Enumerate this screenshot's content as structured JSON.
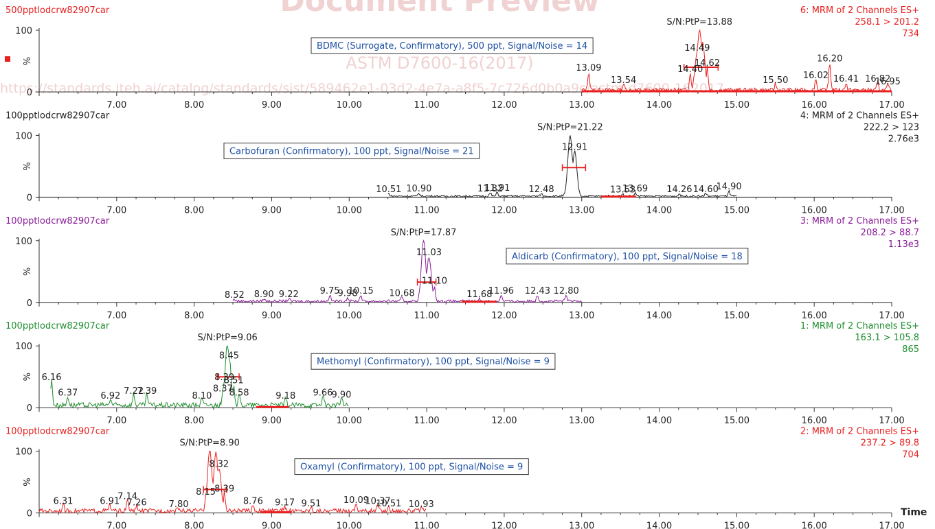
{
  "watermark": {
    "title": "Document Preview",
    "standard": "ASTM D7600-16(2017)",
    "url": "https://standards.iteh.ai/catalog/standards/sist/589462e1-03d2-4e7a-a8f5-7c726d0b0a9c/astm-d7600-162017"
  },
  "x_axis_label": "Time",
  "chart_data": [
    {
      "type": "line",
      "sample": "500pptlodcrw82907car",
      "channel": "6: MRM of 2 Channels ES+",
      "transition": "258.1 > 201.2",
      "intensity": "734",
      "annotation": "BDMC (Surrogate, Confirmatory), 500 ppt, Signal/Noise = 14",
      "sn_label": "S/N:PtP=13.88",
      "color": "#e8201f",
      "y_axis_label": "%",
      "xlim": [
        6.0,
        17.0
      ],
      "ylim": [
        0,
        100
      ],
      "x_ticks": [
        "7.00",
        "8.00",
        "9.00",
        "10.00",
        "11.00",
        "12.00",
        "13.00",
        "14.00",
        "15.00",
        "16.00",
        "17.00"
      ],
      "y_ticks": [
        "100",
        "0"
      ],
      "trace_range": [
        13.0,
        17.0
      ],
      "noise": 0.09,
      "baseline_bar": [
        13.0,
        17.0
      ],
      "peak_bar": [
        14.32,
        14.76
      ],
      "peak_bar_y": 40,
      "peaks": [
        {
          "x": 13.09,
          "y": 30,
          "label": "13.09"
        },
        {
          "x": 13.54,
          "y": 10,
          "label": "13.54"
        },
        {
          "x": 14.4,
          "y": 28,
          "label": "14.40"
        },
        {
          "x": 14.49,
          "y": 62,
          "label": "14.49"
        },
        {
          "x": 14.52,
          "y": 100,
          "label": ""
        },
        {
          "x": 14.56,
          "y": 80,
          "label": ""
        },
        {
          "x": 14.62,
          "y": 38,
          "label": "14.62"
        },
        {
          "x": 15.5,
          "y": 10,
          "label": "15.50"
        },
        {
          "x": 16.02,
          "y": 18,
          "label": "16.02"
        },
        {
          "x": 16.2,
          "y": 45,
          "label": "16.20"
        },
        {
          "x": 16.41,
          "y": 12,
          "label": "16.41"
        },
        {
          "x": 16.82,
          "y": 12,
          "label": "16.82"
        },
        {
          "x": 16.95,
          "y": 8,
          "label": "16.95"
        }
      ]
    },
    {
      "type": "line",
      "sample": "100pptlodcrw82907car",
      "channel": "4: MRM of 2 Channels ES+",
      "transition": "222.2 > 123",
      "intensity": "2.76e3",
      "annotation": "Carbofuran (Confirmatory), 100 ppt, Signal/Noise = 21",
      "sn_label": "S/N:PtP=21.22",
      "color": "#222222",
      "y_axis_label": "%",
      "xlim": [
        6.0,
        17.0
      ],
      "ylim": [
        0,
        100
      ],
      "x_ticks": [
        "7.00",
        "8.00",
        "9.00",
        "10.00",
        "11.00",
        "12.00",
        "13.00",
        "14.00",
        "15.00",
        "16.00",
        "17.00"
      ],
      "y_ticks": [
        "100",
        "0"
      ],
      "trace_range": [
        10.5,
        15.0
      ],
      "noise": 0.05,
      "baseline_bar": [
        13.25,
        13.7
      ],
      "peak_bar": [
        12.75,
        13.05
      ],
      "peak_bar_y": 48,
      "peaks": [
        {
          "x": 10.51,
          "y": 4,
          "label": "10.51"
        },
        {
          "x": 10.9,
          "y": 5,
          "label": "10.90"
        },
        {
          "x": 11.82,
          "y": 5,
          "label": "11.82"
        },
        {
          "x": 11.91,
          "y": 6,
          "label": "11.91"
        },
        {
          "x": 12.48,
          "y": 4,
          "label": "12.48"
        },
        {
          "x": 12.85,
          "y": 100,
          "label": ""
        },
        {
          "x": 12.91,
          "y": 72,
          "label": "12.91"
        },
        {
          "x": 13.53,
          "y": 3,
          "label": "13.53"
        },
        {
          "x": 13.69,
          "y": 5,
          "label": "13.69"
        },
        {
          "x": 14.26,
          "y": 4,
          "label": "14.26"
        },
        {
          "x": 14.6,
          "y": 4,
          "label": "14.60"
        },
        {
          "x": 14.9,
          "y": 8,
          "label": "14.90"
        }
      ]
    },
    {
      "type": "line",
      "sample": "100pptlodcrw82907car",
      "channel": "3: MRM of 2 Channels ES+",
      "transition": "208.2 > 88.7",
      "intensity": "1.13e3",
      "annotation": "Aldicarb (Confirmatory), 100 ppt, Signal/Noise = 18",
      "sn_label": "S/N:PtP=17.87",
      "color": "#8b1e99",
      "y_axis_label": "%",
      "xlim": [
        6.0,
        17.0
      ],
      "ylim": [
        0,
        100
      ],
      "x_ticks": [
        "7.00",
        "8.00",
        "9.00",
        "10.00",
        "11.00",
        "12.00",
        "13.00",
        "14.00",
        "15.00",
        "16.00",
        "17.00"
      ],
      "y_ticks": [
        "100",
        "0"
      ],
      "trace_range": [
        8.5,
        13.0
      ],
      "noise": 0.06,
      "baseline_bar": [
        11.45,
        11.9
      ],
      "peak_bar": [
        10.88,
        11.12
      ],
      "peak_bar_y": 33,
      "peaks": [
        {
          "x": 8.52,
          "y": 3,
          "label": "8.52"
        },
        {
          "x": 8.9,
          "y": 4,
          "label": "8.90"
        },
        {
          "x": 9.22,
          "y": 4,
          "label": "9.22"
        },
        {
          "x": 9.75,
          "y": 10,
          "label": "9.75"
        },
        {
          "x": 9.98,
          "y": 6,
          "label": "9.98"
        },
        {
          "x": 10.15,
          "y": 10,
          "label": "10.15"
        },
        {
          "x": 10.68,
          "y": 6,
          "label": "10.68"
        },
        {
          "x": 10.96,
          "y": 100,
          "label": ""
        },
        {
          "x": 11.03,
          "y": 72,
          "label": "11.03"
        },
        {
          "x": 11.1,
          "y": 26,
          "label": "11.10"
        },
        {
          "x": 11.68,
          "y": 4,
          "label": "11.68"
        },
        {
          "x": 11.96,
          "y": 10,
          "label": "11.96"
        },
        {
          "x": 12.43,
          "y": 10,
          "label": "12.43"
        },
        {
          "x": 12.8,
          "y": 10,
          "label": "12.80"
        }
      ]
    },
    {
      "type": "line",
      "sample": "100pptlodcrw82907car",
      "channel": "1: MRM of 2 Channels ES+",
      "transition": "163.1 > 105.8",
      "intensity": "865",
      "annotation": "Methomyl (Confirmatory), 100 ppt, Signal/Noise = 9",
      "sn_label": "S/N:PtP=9.06",
      "color": "#1f8f2f",
      "y_axis_label": "%",
      "xlim": [
        6.0,
        17.0
      ],
      "ylim": [
        0,
        100
      ],
      "x_ticks": [
        "7.00",
        "8.00",
        "9.00",
        "10.00",
        "11.00",
        "12.00",
        "13.00",
        "14.00",
        "15.00",
        "16.00",
        "17.00"
      ],
      "y_ticks": [
        "100",
        "0"
      ],
      "trace_range": [
        6.15,
        10.0
      ],
      "noise": 0.12,
      "baseline_bar": [
        8.8,
        9.22
      ],
      "peak_bar": [
        8.3,
        8.58
      ],
      "peak_bar_y": 50,
      "peaks": [
        {
          "x": 6.16,
          "y": 40,
          "label": "6.16"
        },
        {
          "x": 6.37,
          "y": 15,
          "label": "6.37"
        },
        {
          "x": 6.92,
          "y": 10,
          "label": "6.92"
        },
        {
          "x": 7.22,
          "y": 18,
          "label": "7.22"
        },
        {
          "x": 7.39,
          "y": 18,
          "label": "7.39"
        },
        {
          "x": 8.1,
          "y": 10,
          "label": "8.10"
        },
        {
          "x": 8.37,
          "y": 22,
          "label": "8.37"
        },
        {
          "x": 8.39,
          "y": 40,
          "label": "8.39"
        },
        {
          "x": 8.43,
          "y": 100,
          "label": ""
        },
        {
          "x": 8.45,
          "y": 75,
          "label": "8.45"
        },
        {
          "x": 8.51,
          "y": 35,
          "label": "8.51"
        },
        {
          "x": 8.58,
          "y": 15,
          "label": "8.58"
        },
        {
          "x": 9.18,
          "y": 10,
          "label": "9.18"
        },
        {
          "x": 9.66,
          "y": 15,
          "label": "9.66"
        },
        {
          "x": 9.9,
          "y": 12,
          "label": "9.90"
        }
      ]
    },
    {
      "type": "line",
      "sample": "100pptlodcrw82907car",
      "channel": "2: MRM of 2 Channels ES+",
      "transition": "237.2 > 89.8",
      "intensity": "704",
      "annotation": "Oxamyl (Confirmatory), 100 ppt, Signal/Noise = 9",
      "sn_label": "S/N:PtP=8.90",
      "color": "#e8201f",
      "y_axis_label": "%",
      "xlim": [
        6.0,
        17.0
      ],
      "ylim": [
        0,
        100
      ],
      "x_ticks": [
        "7.00",
        "8.00",
        "9.00",
        "10.00",
        "11.00",
        "12.00",
        "13.00",
        "14.00",
        "15.00",
        "16.00",
        "17.00"
      ],
      "y_ticks": [
        "100",
        "0"
      ],
      "trace_range": [
        6.0,
        11.0
      ],
      "noise": 0.1,
      "baseline_bar": [
        8.85,
        9.25
      ],
      "peak_bar": [
        8.12,
        8.42
      ],
      "peak_bar_y": 38,
      "peaks": [
        {
          "x": 6.31,
          "y": 10,
          "label": "6.31"
        },
        {
          "x": 6.91,
          "y": 10,
          "label": "6.91"
        },
        {
          "x": 7.14,
          "y": 18,
          "label": "7.14"
        },
        {
          "x": 7.26,
          "y": 8,
          "label": "7.26"
        },
        {
          "x": 7.8,
          "y": 5,
          "label": "7.80"
        },
        {
          "x": 8.15,
          "y": 25,
          "label": "8.15"
        },
        {
          "x": 8.2,
          "y": 100,
          "label": ""
        },
        {
          "x": 8.28,
          "y": 95,
          "label": ""
        },
        {
          "x": 8.32,
          "y": 70,
          "label": "8.32"
        },
        {
          "x": 8.39,
          "y": 30,
          "label": "8.39"
        },
        {
          "x": 8.76,
          "y": 10,
          "label": "8.76"
        },
        {
          "x": 9.17,
          "y": 8,
          "label": "9.17"
        },
        {
          "x": 9.51,
          "y": 6,
          "label": "9.51"
        },
        {
          "x": 10.09,
          "y": 12,
          "label": "10.09"
        },
        {
          "x": 10.37,
          "y": 10,
          "label": "10.37"
        },
        {
          "x": 10.51,
          "y": 6,
          "label": "10.51"
        },
        {
          "x": 10.93,
          "y": 5,
          "label": "10.93"
        }
      ]
    }
  ]
}
